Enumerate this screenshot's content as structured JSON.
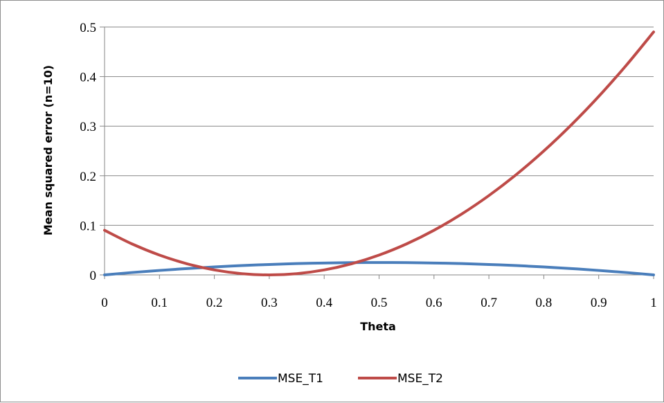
{
  "chart_data": {
    "type": "line",
    "xlabel": "Theta",
    "ylabel": "Mean squared error (n=10)",
    "xlim": [
      0,
      1
    ],
    "ylim": [
      0,
      0.5
    ],
    "x_ticks": [
      "0",
      "0.1",
      "0.2",
      "0.3",
      "0.4",
      "0.5",
      "0.6",
      "0.7",
      "0.8",
      "0.9",
      "1"
    ],
    "y_ticks": [
      "0",
      "0.1",
      "0.2",
      "0.3",
      "0.4",
      "0.5"
    ],
    "grid": "horizontal",
    "legend_position": "bottom",
    "x": [
      0,
      0.05,
      0.1,
      0.15,
      0.2,
      0.25,
      0.3,
      0.35,
      0.4,
      0.45,
      0.5,
      0.55,
      0.6,
      0.65,
      0.7,
      0.75,
      0.8,
      0.85,
      0.9,
      0.95,
      1
    ],
    "series": [
      {
        "name": "MSE_T1",
        "color": "#4a7ebb",
        "values": [
          0,
          0.0048,
          0.009,
          0.0128,
          0.016,
          0.0188,
          0.021,
          0.0228,
          0.024,
          0.0248,
          0.025,
          0.0248,
          0.024,
          0.0228,
          0.021,
          0.0188,
          0.016,
          0.0128,
          0.009,
          0.0048,
          0
        ]
      },
      {
        "name": "MSE_T2",
        "color": "#be4b48",
        "values": [
          0.09,
          0.0625,
          0.04,
          0.0225,
          0.01,
          0.0025,
          0,
          0.0025,
          0.01,
          0.0225,
          0.04,
          0.0625,
          0.09,
          0.1225,
          0.16,
          0.2025,
          0.25,
          0.3025,
          0.36,
          0.4225,
          0.49
        ]
      }
    ]
  }
}
